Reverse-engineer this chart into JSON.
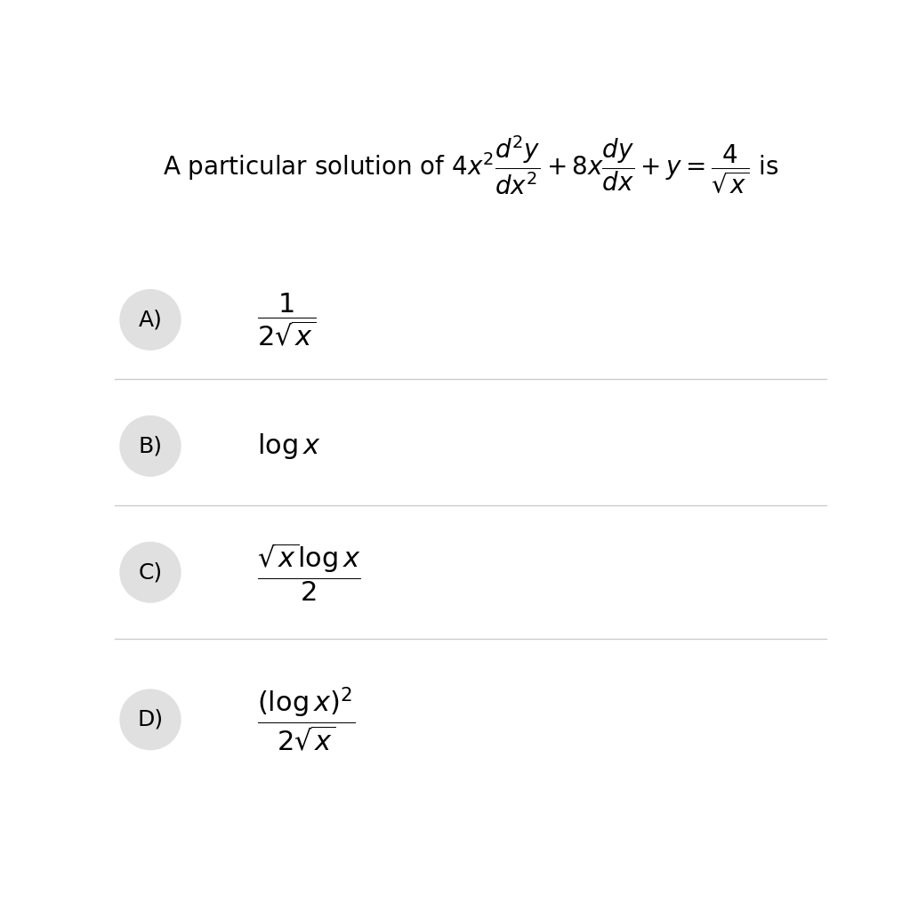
{
  "background_color": "#ffffff",
  "title_text": "A particular solution of $4x^2\\dfrac{d^2y}{dx^2}+8x\\dfrac{dy}{dx}+y=\\dfrac{4}{\\sqrt{x}}$ is",
  "options": [
    {
      "label": "A)",
      "formula": "$\\dfrac{1}{2\\sqrt{x}}$"
    },
    {
      "label": "B)",
      "formula": "$\\log x$"
    },
    {
      "label": "C)",
      "formula": "$\\dfrac{\\sqrt{x}\\log x}{2}$"
    },
    {
      "label": "D)",
      "formula": "$\\dfrac{(\\log x)^2}{2\\sqrt{x}}$"
    }
  ],
  "title_fontsize": 20,
  "option_fontsize": 22,
  "label_fontsize": 18,
  "label_circle_color": "#e0e0e0",
  "label_text_color": "#000000",
  "option_text_color": "#000000",
  "title_color": "#000000",
  "divider_color": "#cccccc",
  "fig_width": 10.32,
  "fig_height": 10.24
}
